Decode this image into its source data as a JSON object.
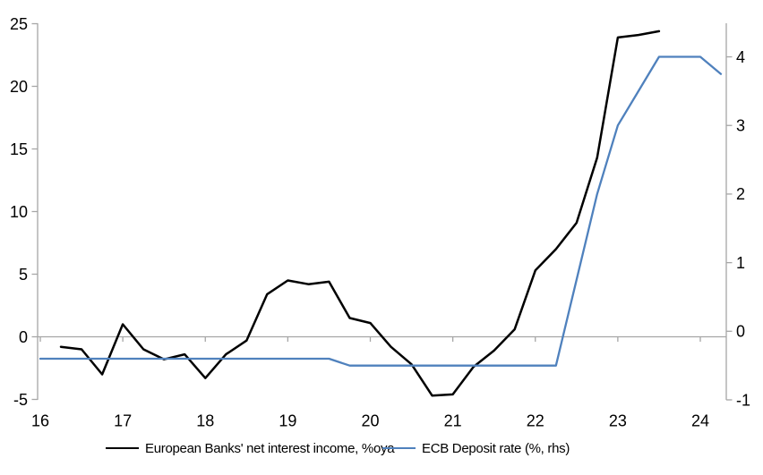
{
  "chart_data": {
    "type": "line",
    "title": "",
    "grid": "off",
    "legend_position": "bottom",
    "x_axis": {
      "tick_labels": [
        "16",
        "17",
        "18",
        "19",
        "20",
        "21",
        "22",
        "23",
        "24"
      ],
      "tick_values": [
        16,
        17,
        18,
        19,
        20,
        21,
        22,
        23,
        24
      ],
      "range": [
        16,
        24.35
      ]
    },
    "left_axis": {
      "tick_labels": [
        "-5",
        "0",
        "5",
        "10",
        "15",
        "20",
        "25"
      ],
      "tick_values": [
        -5,
        0,
        5,
        10,
        15,
        20,
        25
      ],
      "range": [
        -5,
        25
      ]
    },
    "right_axis": {
      "tick_labels": [
        "-1",
        "0",
        "1",
        "2",
        "3",
        "4"
      ],
      "tick_values": [
        -1,
        0,
        1,
        2,
        3,
        4
      ],
      "range": [
        -1,
        4.5
      ]
    },
    "colors": {
      "nii_line": "#000000",
      "ecb_line": "#4f81bd",
      "axis": "#a6a6a6",
      "text": "#000000"
    },
    "series": [
      {
        "name": "European Banks' net interest income, %oya",
        "axis": "left",
        "color": "#000000",
        "points": [
          [
            16.25,
            -0.8
          ],
          [
            16.5,
            -1.0
          ],
          [
            16.75,
            -3.0
          ],
          [
            17.0,
            1.0
          ],
          [
            17.25,
            -1.0
          ],
          [
            17.5,
            -1.8
          ],
          [
            17.75,
            -1.4
          ],
          [
            18.0,
            -3.3
          ],
          [
            18.25,
            -1.4
          ],
          [
            18.5,
            -0.3
          ],
          [
            18.75,
            3.4
          ],
          [
            19.0,
            4.5
          ],
          [
            19.25,
            4.2
          ],
          [
            19.5,
            4.4
          ],
          [
            19.75,
            1.5
          ],
          [
            20.0,
            1.1
          ],
          [
            20.25,
            -0.8
          ],
          [
            20.5,
            -2.2
          ],
          [
            20.75,
            -4.7
          ],
          [
            21.0,
            -4.6
          ],
          [
            21.25,
            -2.4
          ],
          [
            21.5,
            -1.1
          ],
          [
            21.75,
            0.6
          ],
          [
            22.0,
            5.3
          ],
          [
            22.25,
            7.0
          ],
          [
            22.5,
            9.1
          ],
          [
            22.75,
            14.3
          ],
          [
            23.0,
            23.9
          ],
          [
            23.25,
            24.1
          ],
          [
            23.5,
            24.4
          ]
        ]
      },
      {
        "name": "ECB Deposit rate (%, rhs)",
        "axis": "right",
        "color": "#4f81bd",
        "points": [
          [
            16.0,
            -0.4
          ],
          [
            16.25,
            -0.4
          ],
          [
            16.5,
            -0.4
          ],
          [
            16.75,
            -0.4
          ],
          [
            17.0,
            -0.4
          ],
          [
            17.25,
            -0.4
          ],
          [
            17.5,
            -0.4
          ],
          [
            17.75,
            -0.4
          ],
          [
            18.0,
            -0.4
          ],
          [
            18.25,
            -0.4
          ],
          [
            18.5,
            -0.4
          ],
          [
            18.75,
            -0.4
          ],
          [
            19.0,
            -0.4
          ],
          [
            19.25,
            -0.4
          ],
          [
            19.5,
            -0.4
          ],
          [
            19.75,
            -0.5
          ],
          [
            20.0,
            -0.5
          ],
          [
            20.25,
            -0.5
          ],
          [
            20.5,
            -0.5
          ],
          [
            20.75,
            -0.5
          ],
          [
            21.0,
            -0.5
          ],
          [
            21.25,
            -0.5
          ],
          [
            21.5,
            -0.5
          ],
          [
            21.75,
            -0.5
          ],
          [
            22.0,
            -0.5
          ],
          [
            22.25,
            -0.5
          ],
          [
            22.5,
            0.75
          ],
          [
            22.75,
            2.0
          ],
          [
            23.0,
            3.0
          ],
          [
            23.25,
            3.5
          ],
          [
            23.5,
            4.0
          ],
          [
            23.75,
            4.0
          ],
          [
            24.0,
            4.0
          ],
          [
            24.25,
            3.75
          ]
        ]
      }
    ]
  }
}
